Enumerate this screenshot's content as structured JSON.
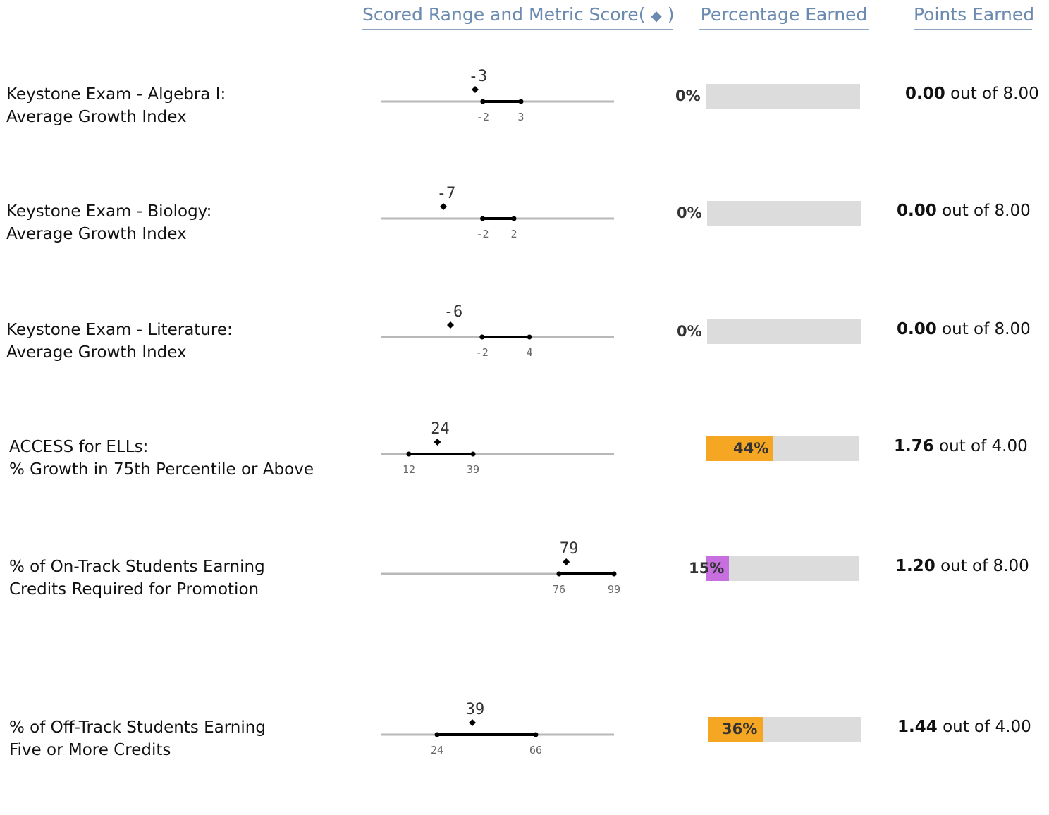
{
  "headers": {
    "scored_range": "Scored Range and Metric Score",
    "diamond_open": "( ",
    "diamond": "◆",
    "diamond_close": " )",
    "percentage": "Percentage Earned",
    "points": "Points Earned"
  },
  "colors": {
    "track": "#b8b8b8",
    "range": "#000000",
    "bar_bg": "#dcdcdc"
  },
  "chart_data": {
    "type": "table",
    "rows": [
      {
        "label1": "Keystone Exam - Algebra I:",
        "label2": "Average Growth Index",
        "score": -3,
        "range_low": -2,
        "range_high": 3,
        "score_label": "-3",
        "low_label": "-2",
        "high_label": "3",
        "percent": 0,
        "percent_label": "0%",
        "fill_color": "#dcdcdc",
        "points": "0.00",
        "out_of": "out of",
        "max": "8.00"
      },
      {
        "label1": "Keystone Exam - Biology:",
        "label2": "Average Growth Index",
        "score": -7,
        "range_low": -2,
        "range_high": 2,
        "score_label": "-7",
        "low_label": "-2",
        "high_label": "2",
        "percent": 0,
        "percent_label": "0%",
        "fill_color": "#dcdcdc",
        "points": "0.00",
        "out_of": "out of",
        "max": "8.00"
      },
      {
        "label1": "Keystone Exam - Literature:",
        "label2": "Average Growth Index",
        "score": -6,
        "range_low": -2,
        "range_high": 4,
        "score_label": "-6",
        "low_label": "-2",
        "high_label": "4",
        "percent": 0,
        "percent_label": "0%",
        "fill_color": "#dcdcdc",
        "points": "0.00",
        "out_of": "out of",
        "max": "8.00"
      },
      {
        "label1": "ACCESS for ELLs:",
        "label2": "% Growth in 75th Percentile or Above",
        "score": 24,
        "range_low": 12,
        "range_high": 39,
        "score_label": "24",
        "low_label": "12",
        "high_label": "39",
        "percent": 44,
        "percent_label": "44%",
        "fill_color": "#f5a623",
        "points": "1.76",
        "out_of": "out of",
        "max": "4.00"
      },
      {
        "label1": "% of On-Track Students Earning",
        "label2": "Credits Required for Promotion",
        "score": 79,
        "range_low": 76,
        "range_high": 99,
        "score_label": "79",
        "low_label": "76",
        "high_label": "99",
        "percent": 15,
        "percent_label": "15%",
        "fill_color": "#c86fe0",
        "points": "1.20",
        "out_of": "out of",
        "max": "8.00"
      },
      {
        "label1": "% of Off-Track Students Earning",
        "label2": "Five or More Credits",
        "score": 39,
        "range_low": 24,
        "range_high": 66,
        "score_label": "39",
        "low_label": "24",
        "high_label": "66",
        "percent": 36,
        "percent_label": "36%",
        "fill_color": "#f5a623",
        "points": "1.44",
        "out_of": "out of",
        "max": "4.00"
      }
    ]
  }
}
